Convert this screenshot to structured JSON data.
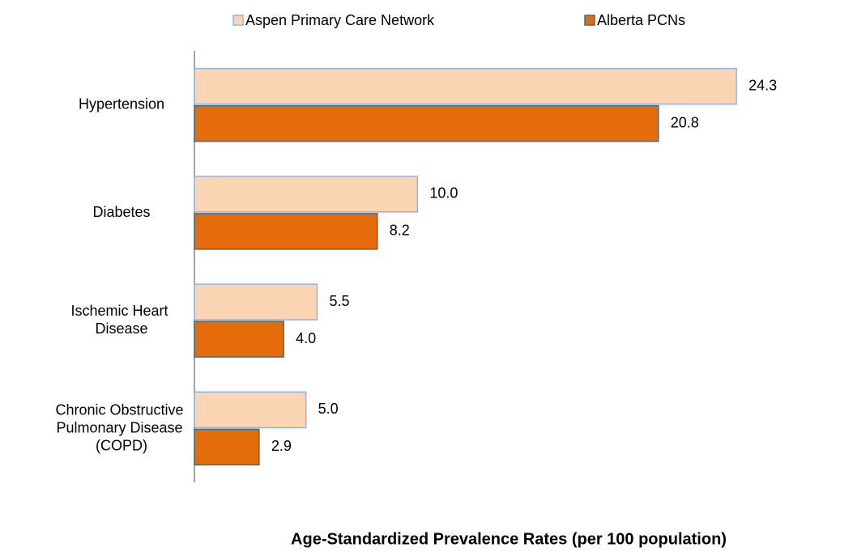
{
  "chart_data": {
    "type": "hbar",
    "x_label": "Age-Standardized Prevalence Rates (per 100 population)",
    "categories": [
      "Hypertension",
      "Diabetes",
      "Ischemic Heart Disease",
      "Chronic Obstructive Pulmonary Disease (COPD)"
    ],
    "series": [
      {
        "name": "Aspen Primary Care Network",
        "color": "#fcd5b5",
        "edge": "#8eb4e3",
        "values": [
          24.3,
          10,
          5.5,
          5
        ],
        "value_labels": [
          "24.3",
          "10.0",
          "5.5",
          "5.0"
        ]
      },
      {
        "name": "Alberta PCNs",
        "color": "#e46c0a",
        "edge": "#3f6f86",
        "values": [
          20.8,
          8.2,
          4,
          2.9
        ],
        "value_labels": [
          "20.8",
          "8.2",
          "4.0",
          "2.9"
        ]
      }
    ],
    "xlim": [
      0,
      28
    ]
  }
}
